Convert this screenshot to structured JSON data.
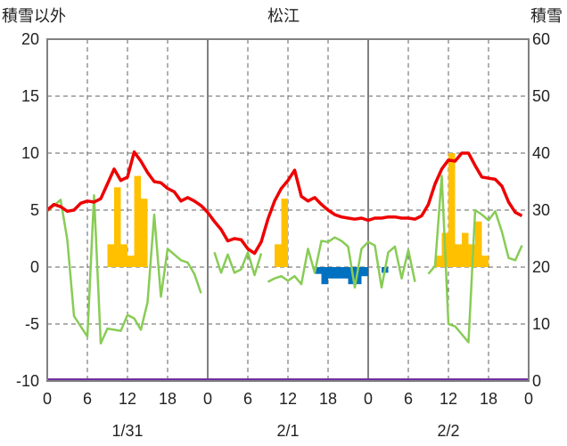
{
  "chart_data": {
    "type": "line+bar",
    "title": "松江",
    "left_axis_label": "積雪以外",
    "right_axis_label": "積雪",
    "left_ylim": [
      -10,
      20
    ],
    "left_ticks": [
      "20",
      "15",
      "10",
      "5",
      "0",
      "-5",
      "-10"
    ],
    "right_ylim": [
      0,
      60
    ],
    "right_ticks": [
      "60",
      "50",
      "40",
      "30",
      "20",
      "10",
      "0"
    ],
    "x_range_hours": [
      0,
      72
    ],
    "x_tick_labels": [
      "0",
      "6",
      "12",
      "18",
      "0",
      "6",
      "12",
      "18",
      "0",
      "6",
      "12",
      "18",
      "0"
    ],
    "date_labels": [
      "1/31",
      "2/1",
      "2/2"
    ],
    "grid": true,
    "colors": {
      "temperature": "#ee0000",
      "wind": "#88cc55",
      "precip_positive": "#ffc000",
      "precip_negative": "#0070c0",
      "snow_depth": "#7030a0",
      "axes": "#808080",
      "grid": "#606060"
    },
    "series": [
      {
        "key": "temperature",
        "x": [
          0,
          1,
          2,
          3,
          4,
          5,
          6,
          7,
          8,
          9,
          10,
          11,
          12,
          13,
          14,
          15,
          16,
          17,
          18,
          19,
          20,
          21,
          22,
          23,
          24,
          25,
          26,
          27,
          28,
          29,
          30,
          31,
          32,
          33,
          34,
          35,
          36,
          37,
          38,
          39,
          40,
          41,
          42,
          43,
          44,
          45,
          46,
          47,
          48,
          49,
          50,
          51,
          52,
          53,
          54,
          55,
          56,
          57,
          58,
          59,
          60,
          61,
          62,
          63,
          64,
          65,
          66,
          67,
          68,
          69,
          70,
          71
        ],
        "values": [
          5.0,
          5.5,
          5.3,
          4.9,
          5.0,
          5.6,
          5.8,
          5.7,
          6.0,
          7.3,
          8.6,
          7.6,
          7.9,
          10.1,
          9.3,
          8.3,
          7.5,
          7.4,
          6.9,
          6.6,
          5.8,
          6.1,
          5.8,
          5.4,
          4.8,
          4.0,
          3.3,
          2.3,
          2.5,
          2.4,
          1.6,
          1.2,
          2.2,
          4.2,
          5.8,
          6.9,
          7.6,
          8.5,
          6.2,
          5.8,
          6.1,
          5.5,
          5.0,
          4.6,
          4.4,
          4.3,
          4.2,
          4.3,
          4.1,
          4.3,
          4.3,
          4.4,
          4.4,
          4.3,
          4.3,
          4.2,
          4.5,
          5.5,
          7.3,
          8.6,
          9.4,
          9.3,
          10.0,
          10.0,
          8.9,
          7.9,
          7.8,
          7.7,
          7.1,
          5.7,
          4.8,
          4.5
        ]
      },
      {
        "key": "wind",
        "segments": [
          {
            "x": [
              0,
              1,
              2,
              3,
              4,
              5,
              6,
              7,
              8,
              9,
              10,
              11,
              12,
              13,
              14,
              15,
              16,
              17,
              18,
              19,
              20,
              21,
              22,
              23
            ],
            "values": [
              4.9,
              5.4,
              5.9,
              2.4,
              -4.3,
              -5.2,
              -6.1,
              6.3,
              -6.7,
              -5.4,
              -5.5,
              -5.6,
              -4.2,
              -4.5,
              -5.5,
              -3.1,
              4.6,
              -2.6,
              1.6,
              1.1,
              0.6,
              0.4,
              -0.6,
              -2.3
            ]
          },
          {
            "x": [
              25,
              26,
              27,
              28,
              29,
              30,
              31,
              32
            ],
            "values": [
              1.3,
              -0.5,
              1.1,
              -0.5,
              -0.2,
              1.3,
              -0.7,
              1.2
            ]
          },
          {
            "x": [
              33,
              34,
              35,
              36,
              37,
              38,
              39,
              40,
              41,
              42,
              43,
              44,
              45,
              46,
              47,
              48,
              49,
              50,
              51,
              52,
              53,
              54,
              55
            ],
            "values": [
              -1.3,
              -1.0,
              -0.8,
              -1.2,
              -0.8,
              -1.5,
              1.6,
              -0.5,
              2.3,
              2.2,
              2.6,
              2.3,
              1.8,
              -1.8,
              1.6,
              2.2,
              1.9,
              -1.8,
              1.3,
              1.8,
              -1.0,
              1.5,
              -1.3
            ]
          },
          {
            "x": [
              57,
              58,
              59,
              60,
              61,
              62,
              63,
              64,
              65,
              66,
              67,
              68,
              69,
              70,
              71
            ],
            "values": [
              -0.6,
              0.1,
              8.0,
              -5.0,
              -5.2,
              -5.9,
              -6.6,
              5.0,
              4.6,
              4.1,
              4.9,
              3.1,
              0.8,
              0.6,
              1.9
            ]
          }
        ]
      },
      {
        "key": "precipitation",
        "x": [
          9,
          10,
          11,
          12,
          13,
          14,
          34,
          35,
          40,
          41,
          42,
          43,
          44,
          45,
          46,
          47,
          48,
          50,
          58,
          59,
          60,
          61,
          62,
          63,
          64,
          65,
          66
        ],
        "values": [
          2.0,
          7.0,
          2.0,
          1.0,
          8.0,
          6.0,
          2.0,
          6.0,
          -0.6,
          -1.5,
          -1.0,
          -1.0,
          -1.0,
          -1.5,
          -1.5,
          -0.8,
          0.0,
          -0.5,
          1.0,
          3.0,
          10.0,
          2.0,
          3.0,
          2.0,
          4.0,
          1.0,
          0.0
        ]
      },
      {
        "key": "snow_depth",
        "x": [
          0,
          72
        ],
        "values": [
          0,
          0
        ]
      }
    ]
  }
}
